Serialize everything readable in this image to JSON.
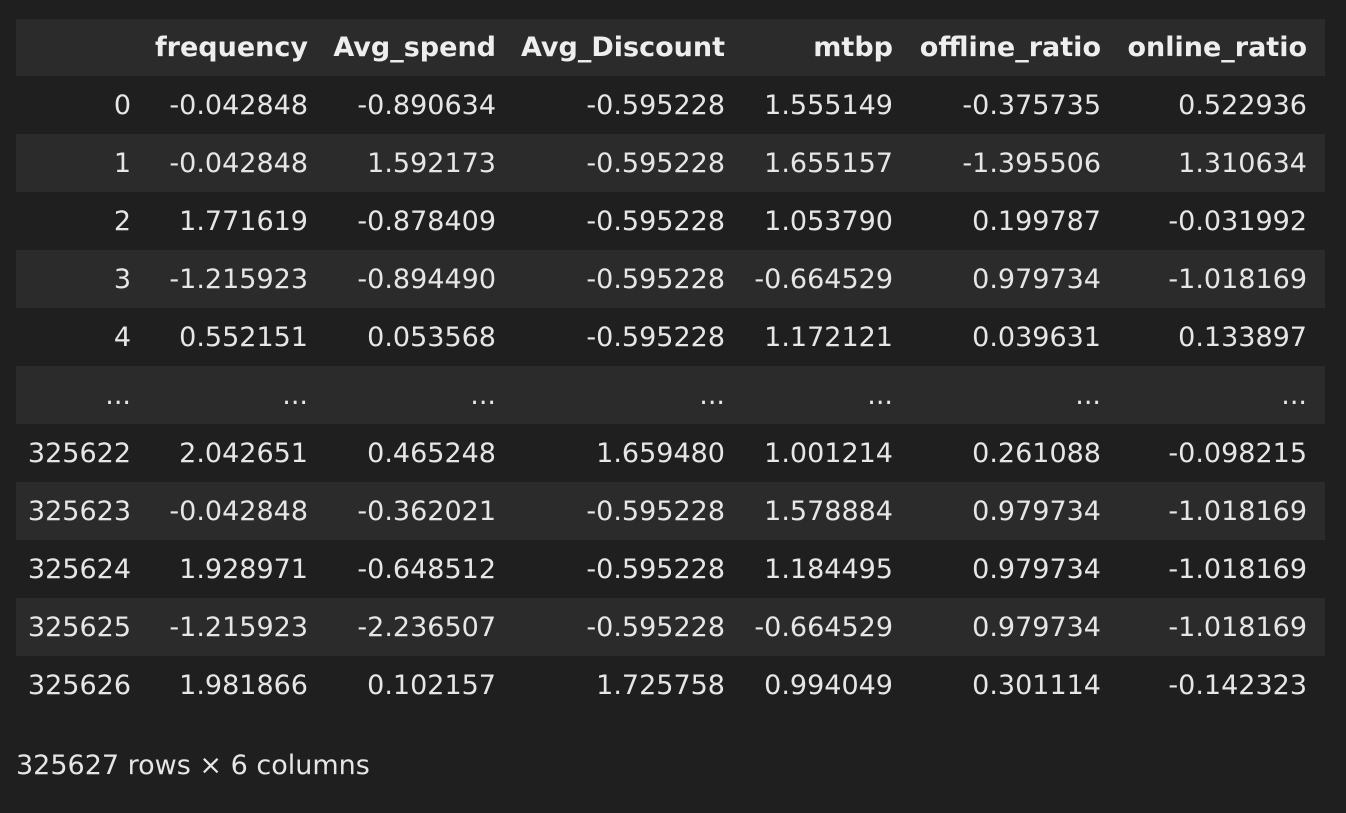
{
  "table": {
    "columns": [
      "",
      "frequency",
      "Avg_spend",
      "Avg_Discount",
      "mtbp",
      "offline_ratio",
      "online_ratio"
    ],
    "rows": [
      [
        "0",
        "-0.042848",
        "-0.890634",
        "-0.595228",
        "1.555149",
        "-0.375735",
        "0.522936"
      ],
      [
        "1",
        "-0.042848",
        "1.592173",
        "-0.595228",
        "1.655157",
        "-1.395506",
        "1.310634"
      ],
      [
        "2",
        "1.771619",
        "-0.878409",
        "-0.595228",
        "1.053790",
        "0.199787",
        "-0.031992"
      ],
      [
        "3",
        "-1.215923",
        "-0.894490",
        "-0.595228",
        "-0.664529",
        "0.979734",
        "-1.018169"
      ],
      [
        "4",
        "0.552151",
        "0.053568",
        "-0.595228",
        "1.172121",
        "0.039631",
        "0.133897"
      ],
      [
        "...",
        "...",
        "...",
        "...",
        "...",
        "...",
        "..."
      ],
      [
        "325622",
        "2.042651",
        "0.465248",
        "1.659480",
        "1.001214",
        "0.261088",
        "-0.098215"
      ],
      [
        "325623",
        "-0.042848",
        "-0.362021",
        "-0.595228",
        "1.578884",
        "0.979734",
        "-1.018169"
      ],
      [
        "325624",
        "1.928971",
        "-0.648512",
        "-0.595228",
        "1.184495",
        "0.979734",
        "-1.018169"
      ],
      [
        "325625",
        "-1.215923",
        "-2.236507",
        "-0.595228",
        "-0.664529",
        "0.979734",
        "-1.018169"
      ],
      [
        "325626",
        "1.981866",
        "0.102157",
        "1.725758",
        "0.994049",
        "0.301114",
        "-0.142323"
      ]
    ]
  },
  "shape_caption": "325627 rows × 6 columns"
}
